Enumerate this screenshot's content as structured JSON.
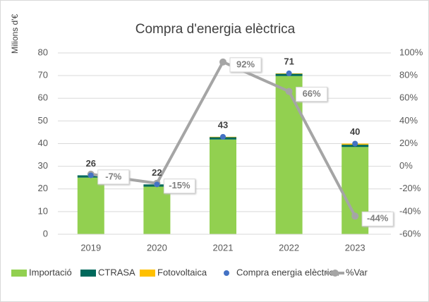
{
  "chart_data": {
    "type": "bar",
    "stacked": true,
    "title": "Compra d'energia elèctrica",
    "y_label": "Milions d'€",
    "categories": [
      "2019",
      "2020",
      "2021",
      "2022",
      "2023"
    ],
    "series": [
      {
        "name": "Importació",
        "type": "bar",
        "color": "#92d050",
        "values": [
          25,
          21,
          41.8,
          69.8,
          38.5
        ]
      },
      {
        "name": "CTRASA",
        "type": "bar",
        "color": "#00695c",
        "values": [
          1,
          1,
          1,
          1,
          1
        ]
      },
      {
        "name": "Fotovoltaica",
        "type": "bar",
        "color": "#ffc000",
        "values": [
          0,
          0,
          0.2,
          0.2,
          0.5
        ]
      },
      {
        "name": "Compra energia elèctrica",
        "type": "scatter",
        "color": "#4472c4",
        "values": [
          26,
          22,
          43,
          71,
          40
        ]
      },
      {
        "name": "%Var",
        "type": "line",
        "axis": "y2",
        "color": "#a5a5a5",
        "values": [
          -7,
          -15,
          92,
          66,
          -44
        ],
        "value_labels": [
          "-7%",
          "-15%",
          "92%",
          "66%",
          "-44%"
        ]
      }
    ],
    "ylim": [
      0,
      80
    ],
    "yticks": [
      0,
      10,
      20,
      30,
      40,
      50,
      60,
      70,
      80
    ],
    "y2lim": [
      -60,
      100
    ],
    "y2ticks": [
      {
        "value": -60,
        "label": "-60%"
      },
      {
        "value": -40,
        "label": "-40%"
      },
      {
        "value": -20,
        "label": "-20%"
      },
      {
        "value": 0,
        "label": "0%"
      },
      {
        "value": 20,
        "label": "20%"
      },
      {
        "value": 40,
        "label": "40%"
      },
      {
        "value": 60,
        "label": "60%"
      },
      {
        "value": 80,
        "label": "80%"
      },
      {
        "value": 100,
        "label": "100%"
      }
    ],
    "grid": true
  }
}
